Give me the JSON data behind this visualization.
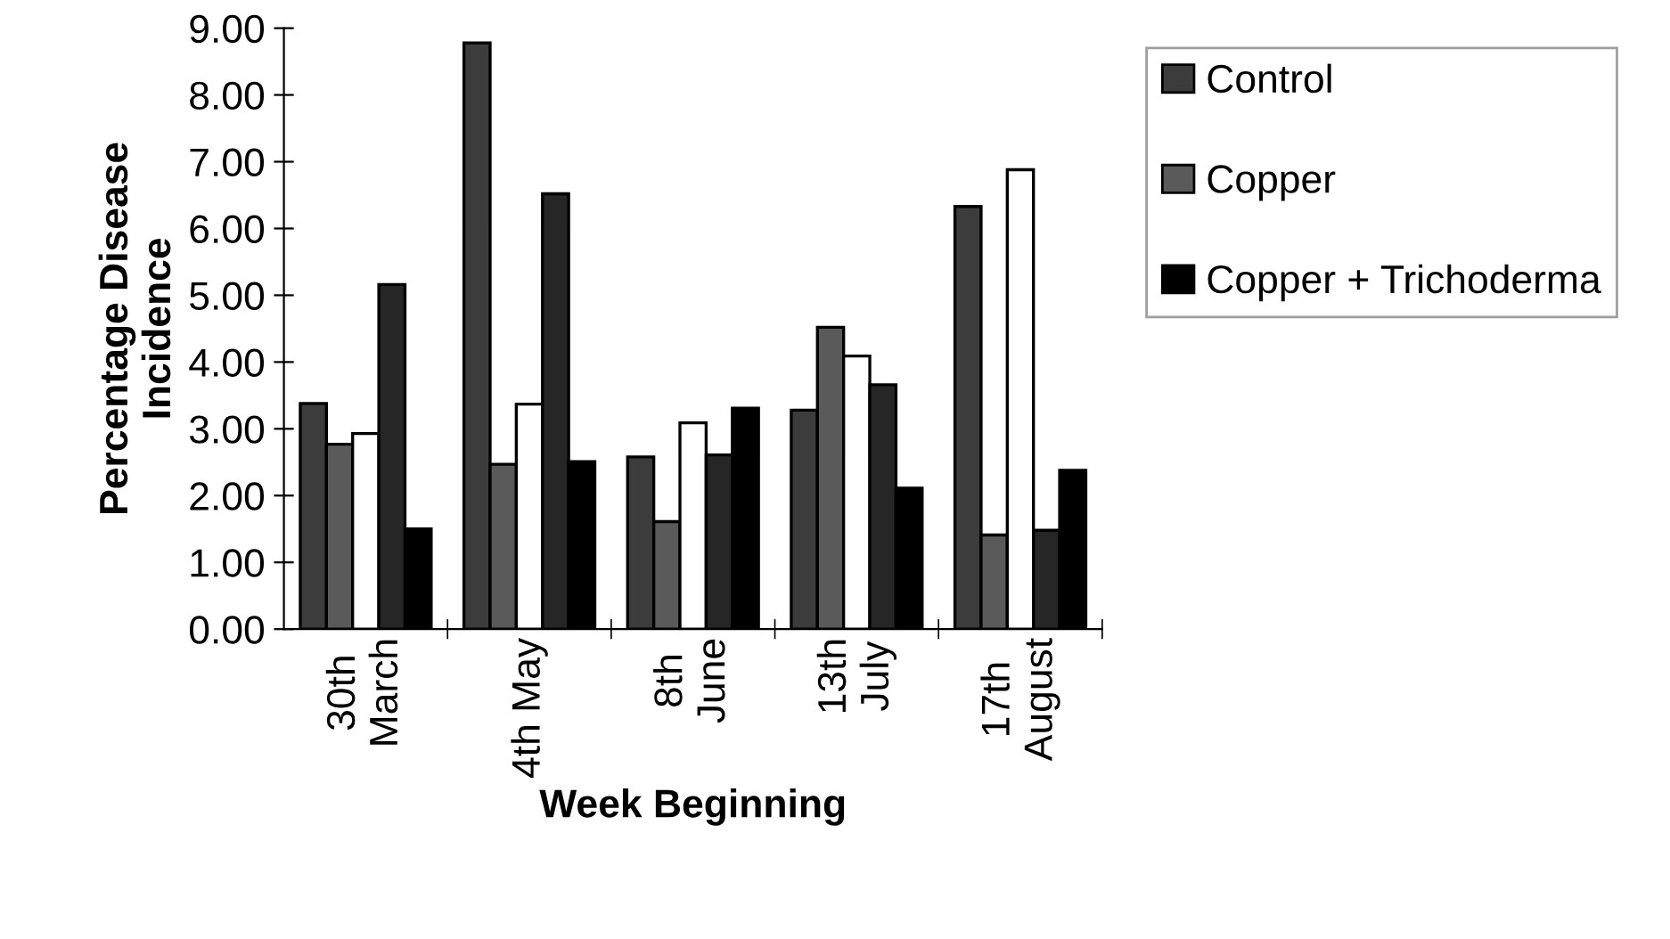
{
  "chart_data": {
    "type": "bar",
    "xlabel": "Week Beginning",
    "ylabel": "Percentage Disease\nIncidence",
    "categories": [
      "30th\nMarch",
      "4th May",
      "8th\nJune",
      "13th\nJuly",
      "17th\nAugust"
    ],
    "series": [
      {
        "name": "Control",
        "color": "#3c3c3c",
        "values": [
          3.38,
          8.78,
          2.58,
          3.28,
          6.33
        ]
      },
      {
        "name": "Copper",
        "color": "#5a5a5a",
        "values": [
          2.77,
          2.47,
          1.61,
          4.52,
          1.41
        ]
      },
      {
        "color": "#ffffff",
        "values": [
          2.93,
          3.37,
          3.09,
          4.09,
          6.88
        ]
      },
      {
        "color": "#262626",
        "values": [
          5.16,
          6.52,
          2.61,
          3.66,
          1.48
        ]
      },
      {
        "name": "Copper + Trichoderma",
        "color": "#000000",
        "values": [
          1.5,
          2.51,
          3.31,
          2.11,
          2.38
        ]
      }
    ],
    "ylim": [
      0,
      9
    ],
    "yticks": [
      {
        "value": 0,
        "label": "0.00"
      },
      {
        "value": 1,
        "label": "1.00"
      },
      {
        "value": 2,
        "label": "2.00"
      },
      {
        "value": 3,
        "label": "3.00"
      },
      {
        "value": 4,
        "label": "4.00"
      },
      {
        "value": 5,
        "label": "5.00"
      },
      {
        "value": 6,
        "label": "6.00"
      },
      {
        "value": 7,
        "label": "7.00"
      },
      {
        "value": 8,
        "label": "8.00"
      },
      {
        "value": 9,
        "label": "9.00"
      }
    ],
    "grid": false,
    "legend": "right"
  }
}
